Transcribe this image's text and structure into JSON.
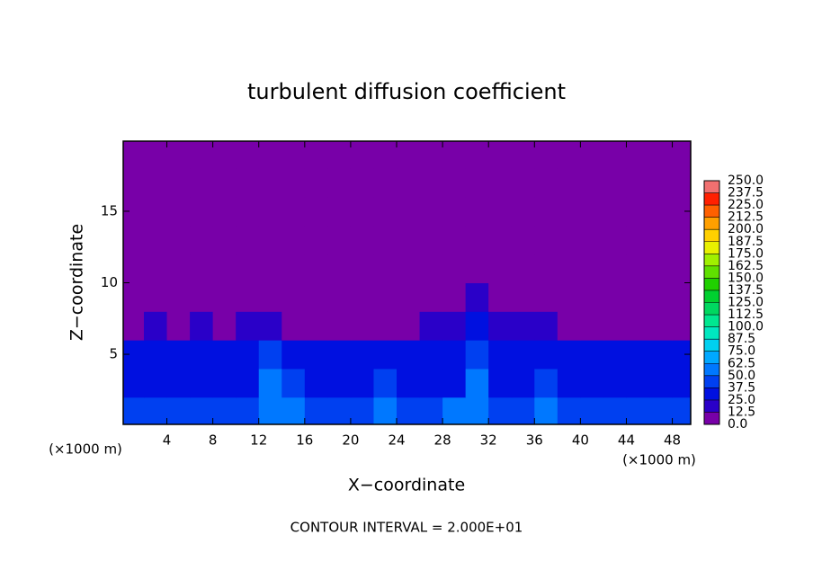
{
  "chart_data": {
    "type": "heatmap",
    "title": "turbulent diffusion coefficient",
    "x_label": "X−coordinate",
    "y_label": "Z−coordinate",
    "x_unit": "(×1000 m)",
    "y_unit": "(×1000 m)",
    "annotation": "CONTOUR INTERVAL = 2.000E+01",
    "xlim": [
      0.2,
      49.6
    ],
    "ylim": [
      0.1,
      19.9
    ],
    "xticks": [
      4,
      8,
      12,
      16,
      20,
      24,
      28,
      32,
      36,
      40,
      44,
      48
    ],
    "yticks": [
      5,
      10,
      15
    ],
    "x": [
      1,
      3,
      5,
      7,
      9,
      11,
      13,
      15,
      17,
      19,
      21,
      23,
      25,
      27,
      29,
      31,
      33,
      35,
      37,
      39,
      41,
      43,
      45,
      47,
      49
    ],
    "y": [
      1,
      3,
      5,
      7,
      9,
      11,
      13,
      15,
      17,
      19
    ],
    "values": [
      [
        40,
        45,
        40,
        40,
        45,
        40,
        55,
        50,
        40,
        40,
        45,
        55,
        40,
        40,
        50,
        55,
        45,
        40,
        55,
        45,
        40,
        40,
        45,
        40,
        45
      ],
      [
        30,
        35,
        30,
        30,
        30,
        35,
        50,
        40,
        30,
        30,
        35,
        45,
        30,
        30,
        35,
        50,
        35,
        30,
        40,
        30,
        30,
        30,
        35,
        30,
        35
      ],
      [
        25,
        25,
        25,
        30,
        25,
        30,
        40,
        35,
        25,
        25,
        30,
        35,
        25,
        25,
        30,
        45,
        30,
        25,
        30,
        25,
        25,
        25,
        30,
        25,
        30
      ],
      [
        12,
        15,
        12,
        15,
        12,
        15,
        15,
        12,
        12,
        12,
        12,
        10,
        12,
        15,
        20,
        25,
        20,
        20,
        15,
        12,
        10,
        10,
        12,
        10,
        12
      ],
      [
        0,
        0,
        0,
        0,
        0,
        0,
        0,
        0,
        0,
        0,
        0,
        0,
        0,
        5,
        8,
        15,
        8,
        5,
        0,
        0,
        0,
        0,
        0,
        0,
        0
      ],
      [
        0,
        0,
        0,
        0,
        0,
        0,
        0,
        0,
        0,
        0,
        0,
        0,
        0,
        0,
        0,
        0,
        0,
        0,
        0,
        0,
        0,
        0,
        0,
        0,
        0
      ],
      [
        0,
        0,
        0,
        0,
        0,
        0,
        0,
        0,
        0,
        0,
        0,
        0,
        0,
        0,
        0,
        0,
        0,
        0,
        0,
        0,
        0,
        0,
        0,
        0,
        0
      ],
      [
        0,
        0,
        0,
        0,
        0,
        0,
        0,
        0,
        0,
        0,
        0,
        0,
        0,
        0,
        0,
        0,
        0,
        0,
        0,
        0,
        0,
        0,
        0,
        0,
        0
      ],
      [
        0,
        0,
        0,
        0,
        0,
        0,
        0,
        0,
        0,
        0,
        0,
        0,
        0,
        0,
        0,
        0,
        0,
        0,
        0,
        0,
        0,
        0,
        0,
        0,
        0
      ],
      [
        0,
        0,
        0,
        0,
        0,
        0,
        0,
        0,
        0,
        0,
        0,
        0,
        0,
        0,
        0,
        0,
        0,
        0,
        0,
        0,
        0,
        0,
        0,
        0,
        0
      ]
    ],
    "colorbar_ticks": [
      {
        "value": 0,
        "label": "0.0"
      },
      {
        "value": 12.5,
        "label": "12.5"
      },
      {
        "value": 25,
        "label": "25.0"
      },
      {
        "value": 37.5,
        "label": "37.5"
      },
      {
        "value": 50,
        "label": "50.0"
      },
      {
        "value": 62.5,
        "label": "62.5"
      },
      {
        "value": 75,
        "label": "75.0"
      },
      {
        "value": 87.5,
        "label": "87.5"
      },
      {
        "value": 100,
        "label": "100.0"
      },
      {
        "value": 112.5,
        "label": "112.5"
      },
      {
        "value": 125,
        "label": "125.0"
      },
      {
        "value": 137.5,
        "label": "137.5"
      },
      {
        "value": 150,
        "label": "150.0"
      },
      {
        "value": 162.5,
        "label": "162.5"
      },
      {
        "value": 175,
        "label": "175.0"
      },
      {
        "value": 187.5,
        "label": "187.5"
      },
      {
        "value": 200,
        "label": "200.0"
      },
      {
        "value": 212.5,
        "label": "212.5"
      },
      {
        "value": 225,
        "label": "225.0"
      },
      {
        "value": 237.5,
        "label": "237.5"
      },
      {
        "value": 250,
        "label": "250.0"
      }
    ],
    "colors": [
      "#7800a8",
      "#2a00c8",
      "#0010e0",
      "#0040f0",
      "#0078ff",
      "#00a8ff",
      "#00d0f0",
      "#00e8c0",
      "#00e890",
      "#00d860",
      "#00d030",
      "#20d000",
      "#60e000",
      "#a0f000",
      "#e8f000",
      "#ffd000",
      "#ffa000",
      "#ff6000",
      "#ff2000",
      "#f07070"
    ]
  }
}
